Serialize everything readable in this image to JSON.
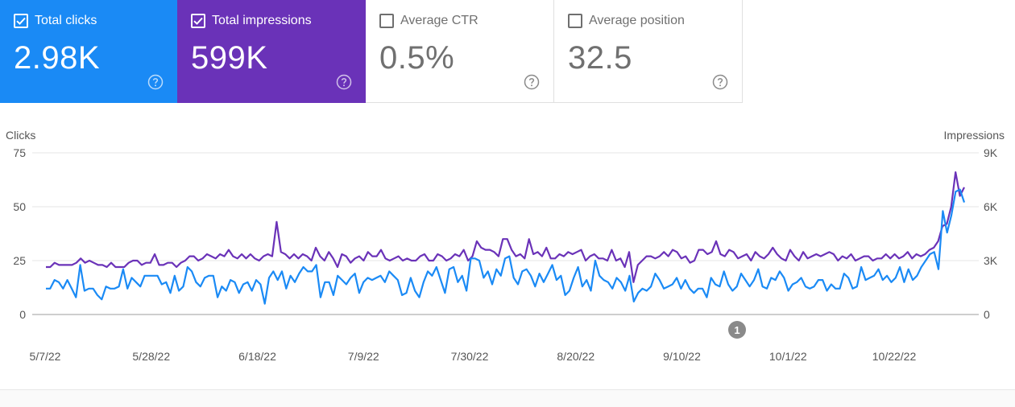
{
  "metrics": [
    {
      "label": "Total clicks",
      "value": "2.98K",
      "checked": true,
      "bg": "#1a8af5"
    },
    {
      "label": "Total impressions",
      "value": "599K",
      "checked": true,
      "bg": "#6a32b8"
    },
    {
      "label": "Average CTR",
      "value": "0.5%",
      "checked": false,
      "bg": "#ffffff"
    },
    {
      "label": "Average position",
      "value": "32.5",
      "checked": false,
      "bg": "#ffffff"
    }
  ],
  "chart": {
    "left_axis_title": "Clicks",
    "right_axis_title": "Impressions",
    "left_ticks": [
      "75",
      "50",
      "25",
      "0"
    ],
    "right_ticks": [
      "9K",
      "6K",
      "3K",
      "0"
    ],
    "x_ticks": [
      "5/7/22",
      "5/28/22",
      "6/18/22",
      "7/9/22",
      "7/30/22",
      "8/20/22",
      "9/10/22",
      "10/1/22",
      "10/22/22"
    ],
    "annotation_label": "1",
    "annotation_color": "#8a8a8a",
    "grid_color": "#e6e6e6"
  },
  "chart_data": {
    "type": "line",
    "x_start": "5/7/22",
    "x_end": "11/3/22",
    "ylim_left": [
      0,
      75
    ],
    "ylim_right": [
      0,
      9000
    ],
    "grid": true,
    "series": [
      {
        "name": "Clicks",
        "axis": "left",
        "color": "#1a8af5",
        "values": [
          12,
          12,
          16,
          15,
          12,
          16,
          12,
          8,
          23,
          11,
          12,
          12,
          9,
          7,
          13,
          12,
          12,
          13,
          21,
          12,
          17,
          15,
          13,
          18,
          18,
          18,
          18,
          14,
          15,
          10,
          18,
          11,
          13,
          22,
          20,
          15,
          13,
          17,
          18,
          18,
          8,
          13,
          11,
          16,
          15,
          10,
          14,
          15,
          11,
          16,
          14,
          5,
          17,
          20,
          16,
          20,
          12,
          18,
          15,
          19,
          22,
          20,
          20,
          23,
          8,
          15,
          15,
          9,
          18,
          16,
          14,
          17,
          19,
          10,
          15,
          17,
          16,
          17,
          18,
          15,
          20,
          18,
          16,
          9,
          10,
          17,
          11,
          8,
          15,
          20,
          18,
          22,
          16,
          10,
          21,
          22,
          15,
          18,
          11,
          26,
          26,
          25,
          17,
          20,
          14,
          21,
          18,
          26,
          27,
          17,
          14,
          20,
          21,
          18,
          13,
          19,
          15,
          19,
          23,
          16,
          18,
          9,
          11,
          17,
          22,
          13,
          16,
          11,
          25,
          18,
          16,
          15,
          12,
          17,
          15,
          11,
          18,
          6,
          10,
          12,
          11,
          13,
          19,
          16,
          12,
          13,
          14,
          17,
          12,
          16,
          12,
          10,
          12,
          12,
          8,
          17,
          14,
          13,
          20,
          14,
          11,
          13,
          19,
          16,
          13,
          16,
          21,
          13,
          12,
          17,
          16,
          20,
          17,
          11,
          14,
          15,
          17,
          13,
          12,
          13,
          16,
          16,
          11,
          14,
          12,
          12,
          19,
          17,
          12,
          13,
          22,
          16,
          17,
          18,
          21,
          16,
          18,
          15,
          17,
          22,
          15,
          21,
          16,
          18,
          22,
          25,
          28,
          29,
          21,
          48,
          38,
          46,
          57,
          58,
          52
        ]
      },
      {
        "name": "Impressions",
        "axis": "right",
        "color": "#6a32b8",
        "values": [
          2640,
          2640,
          2880,
          2760,
          2760,
          2760,
          2760,
          2880,
          3120,
          2880,
          3000,
          2880,
          2760,
          2760,
          2640,
          2880,
          2640,
          2640,
          2640,
          2880,
          3000,
          3000,
          2760,
          2880,
          2880,
          3360,
          2760,
          2760,
          2880,
          2880,
          2640,
          2880,
          3000,
          3240,
          3240,
          3000,
          3120,
          3360,
          3240,
          3120,
          3360,
          3240,
          3600,
          3240,
          3120,
          3360,
          3120,
          3360,
          3120,
          3000,
          3240,
          3360,
          3240,
          5160,
          3480,
          3360,
          3120,
          3360,
          3120,
          3360,
          3240,
          3000,
          3720,
          3240,
          3000,
          3480,
          3120,
          2640,
          3360,
          3240,
          2880,
          3120,
          3240,
          3000,
          3480,
          3240,
          3240,
          3600,
          3120,
          3000,
          3120,
          3240,
          3000,
          3120,
          3000,
          3000,
          3240,
          3360,
          3000,
          3000,
          3360,
          3240,
          3000,
          3120,
          3360,
          3240,
          3600,
          3000,
          3240,
          4080,
          3720,
          3600,
          3600,
          3480,
          3240,
          4200,
          4200,
          3600,
          3240,
          3360,
          3120,
          4200,
          3360,
          3480,
          3240,
          3720,
          3120,
          3120,
          3360,
          3240,
          3480,
          3360,
          3480,
          3600,
          3000,
          3240,
          3360,
          3120,
          3120,
          3000,
          3600,
          3000,
          3120,
          2640,
          3480,
          1800,
          2760,
          3000,
          3240,
          3240,
          3120,
          3240,
          3480,
          3240,
          3600,
          3480,
          3120,
          3240,
          2880,
          3000,
          3600,
          3600,
          3360,
          3480,
          4080,
          3360,
          3240,
          3600,
          3480,
          3120,
          3240,
          3360,
          3000,
          3480,
          3240,
          3120,
          3360,
          3720,
          3360,
          3120,
          3000,
          3600,
          3240,
          3000,
          3480,
          3120,
          3240,
          3360,
          3240,
          3360,
          3480,
          3360,
          3000,
          3240,
          3120,
          3360,
          3000,
          3120,
          3240,
          3240,
          3000,
          3120,
          3120,
          3360,
          3120,
          3360,
          3120,
          3240,
          3480,
          3120,
          3360,
          3240,
          3360,
          3600,
          3720,
          4080,
          4920,
          5040,
          6000,
          7920,
          6600,
          7080
        ]
      }
    ]
  }
}
